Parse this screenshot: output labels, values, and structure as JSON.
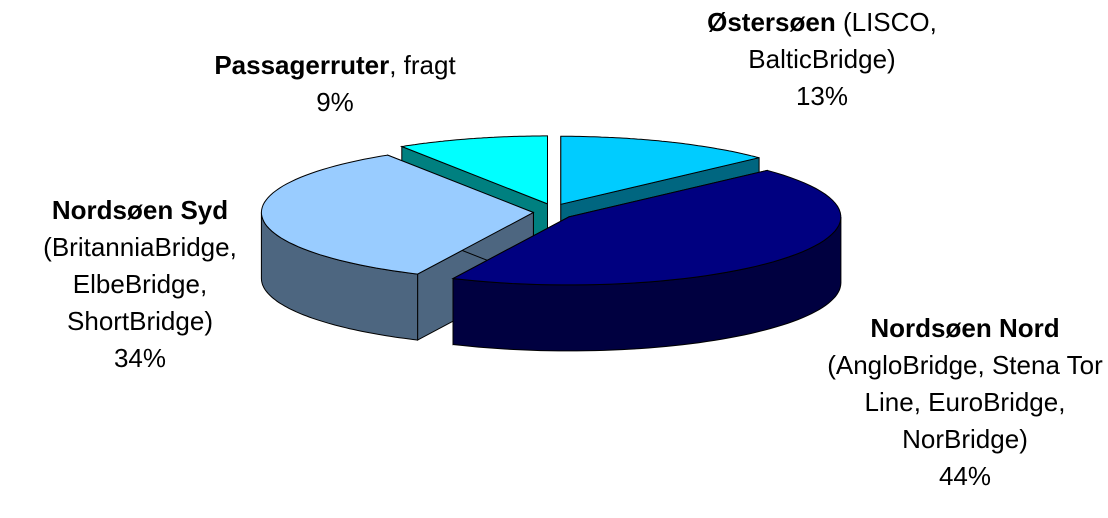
{
  "chart_data": {
    "type": "pie3d",
    "categories": [
      "Østersøen",
      "Nordsøen Nord",
      "Nordsøen Syd",
      "Passagerruter"
    ],
    "details": [
      " (LISCO, BalticBridge)",
      "(AngloBridge, Stena Tor Line, EuroBridge, NorBridge)",
      "(BritanniaBridge, ElbeBridge, ShortBridge)",
      ", fragt"
    ],
    "values": [
      13,
      44,
      34,
      9
    ],
    "value_labels": [
      "13%",
      "44%",
      "34%",
      "9%"
    ],
    "colors": [
      "#00ccff",
      "#000080",
      "#99ccff",
      "#00ffff"
    ]
  }
}
